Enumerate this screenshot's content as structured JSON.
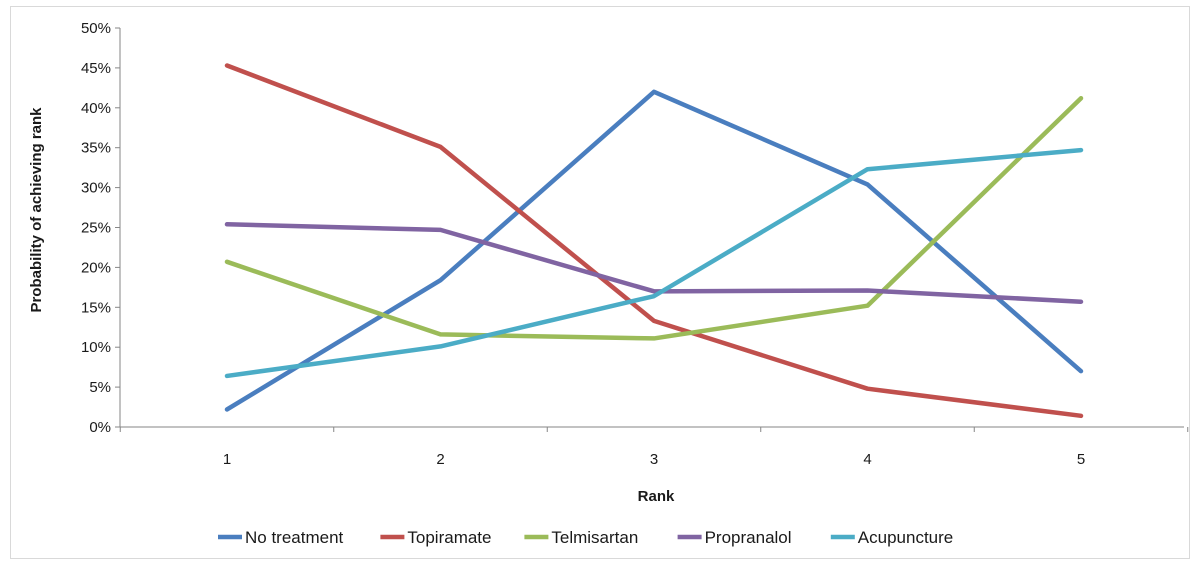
{
  "chart_data": {
    "type": "line",
    "title": "",
    "xlabel": "Rank",
    "ylabel": "Probability of achieving rank",
    "categories": [
      "1",
      "2",
      "3",
      "4",
      "5"
    ],
    "ylim": [
      0,
      50
    ],
    "yticks": [
      "0%",
      "5%",
      "10%",
      "15%",
      "20%",
      "25%",
      "30%",
      "35%",
      "40%",
      "45%",
      "50%"
    ],
    "grid": false,
    "legend_position": "bottom",
    "series": [
      {
        "name": "No treatment",
        "color": "#4a7ebf",
        "values": [
          2.2,
          18.4,
          42.0,
          30.4,
          7.0
        ]
      },
      {
        "name": "Topiramate",
        "color": "#c0504d",
        "values": [
          45.3,
          35.1,
          13.3,
          4.8,
          1.4
        ]
      },
      {
        "name": "Telmisartan",
        "color": "#9bbb59",
        "values": [
          20.7,
          11.6,
          11.1,
          15.2,
          41.2
        ]
      },
      {
        "name": "Propranalol",
        "color": "#8064a2",
        "values": [
          25.4,
          24.7,
          17.0,
          17.1,
          15.7
        ]
      },
      {
        "name": "Acupuncture",
        "color": "#4bacc6",
        "values": [
          6.4,
          10.1,
          16.4,
          32.3,
          34.7
        ]
      }
    ]
  }
}
